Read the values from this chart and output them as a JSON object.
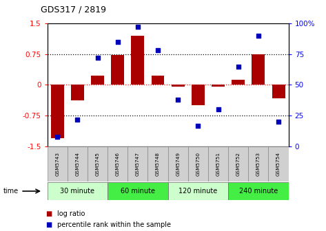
{
  "title": "GDS317 / 2819",
  "samples": [
    "GSM5743",
    "GSM5744",
    "GSM5745",
    "GSM5746",
    "GSM5747",
    "GSM5748",
    "GSM5749",
    "GSM5750",
    "GSM5751",
    "GSM5752",
    "GSM5753",
    "GSM5754"
  ],
  "log_ratio": [
    -1.3,
    -0.38,
    0.22,
    0.72,
    1.2,
    0.22,
    -0.05,
    -0.5,
    -0.05,
    0.13,
    0.75,
    -0.33
  ],
  "percentile": [
    8,
    22,
    72,
    85,
    97,
    78,
    38,
    17,
    30,
    65,
    90,
    20
  ],
  "bar_color": "#aa0000",
  "dot_color": "#0000bb",
  "ylim_left": [
    -1.5,
    1.5
  ],
  "ylim_right": [
    0,
    100
  ],
  "yticks_left": [
    -1.5,
    -0.75,
    0,
    0.75,
    1.5
  ],
  "ytick_labels_left": [
    "-1.5",
    "-0.75",
    "0",
    "0.75",
    "1.5"
  ],
  "yticks_right": [
    0,
    25,
    50,
    75,
    100
  ],
  "ytick_labels_right": [
    "0",
    "25",
    "50",
    "75",
    "100%"
  ],
  "hlines": [
    -0.75,
    0,
    0.75
  ],
  "groups": [
    {
      "label": "30 minute",
      "start": 0,
      "end": 3,
      "color": "#ccffcc"
    },
    {
      "label": "60 minute",
      "start": 3,
      "end": 6,
      "color": "#44ee44"
    },
    {
      "label": "120 minute",
      "start": 6,
      "end": 9,
      "color": "#ccffcc"
    },
    {
      "label": "240 minute",
      "start": 9,
      "end": 12,
      "color": "#44ee44"
    }
  ],
  "xlabel_time": "time",
  "legend_bar_label": "log ratio",
  "legend_dot_label": "percentile rank within the sample",
  "bg_color": "#ffffff",
  "tick_box_color": "#d0d0d0"
}
